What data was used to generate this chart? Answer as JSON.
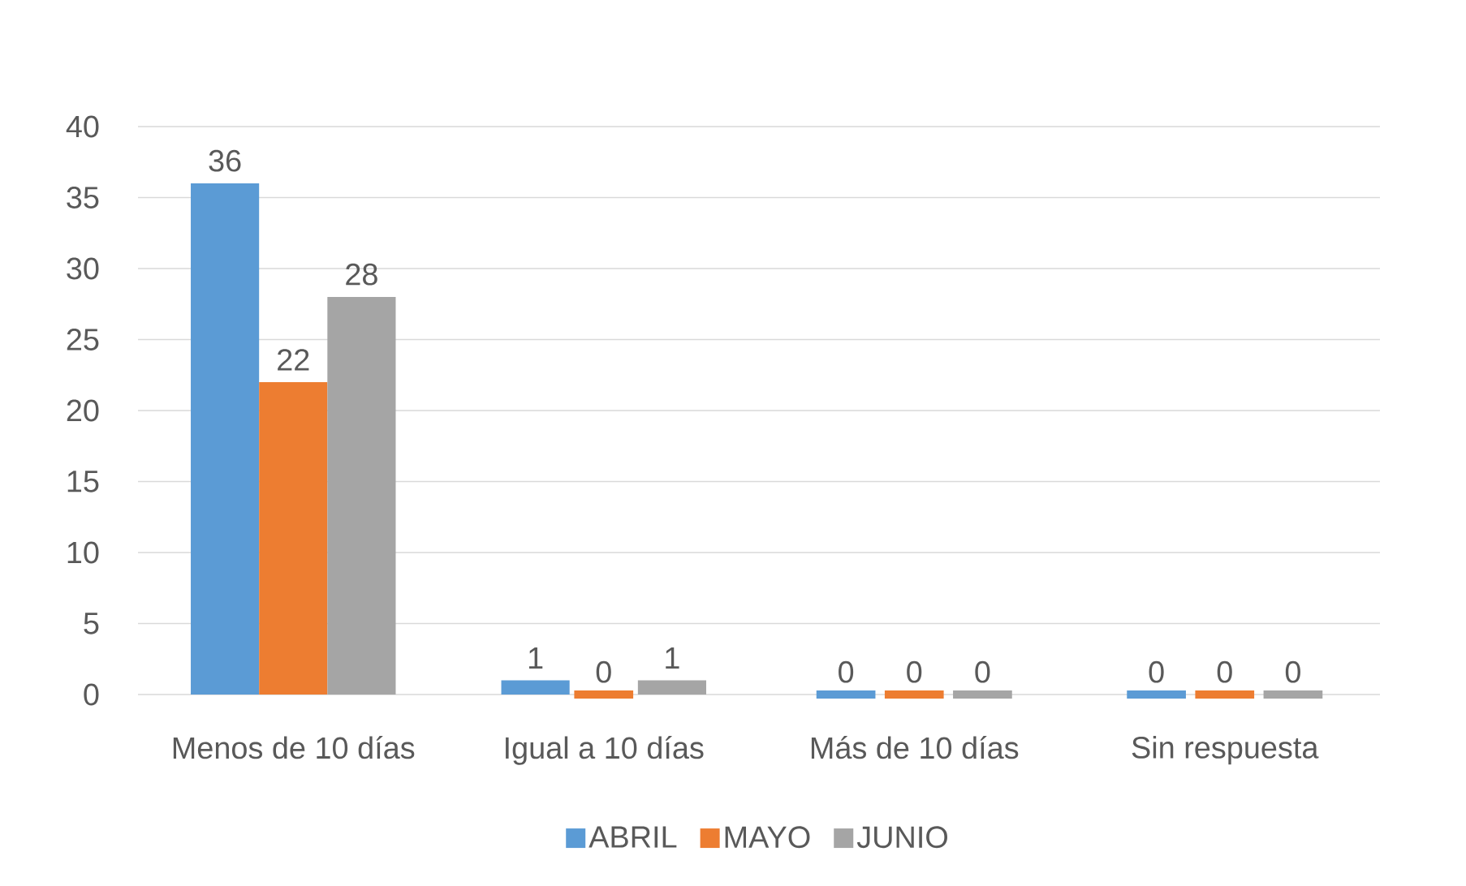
{
  "chart_data": {
    "type": "bar",
    "categories": [
      "Menos de 10 días",
      "Igual a 10 días",
      "Más de 10 días",
      "Sin respuesta"
    ],
    "series": [
      {
        "name": "ABRIL",
        "color": "#5b9bd5",
        "values": [
          36,
          1,
          0,
          0
        ]
      },
      {
        "name": "MAYO",
        "color": "#ed7d31",
        "values": [
          22,
          0,
          0,
          0
        ]
      },
      {
        "name": "JUNIO",
        "color": "#a5a5a5",
        "values": [
          28,
          1,
          0,
          0
        ]
      }
    ],
    "ylim": [
      0,
      40
    ],
    "yticks": [
      0,
      5,
      10,
      15,
      20,
      25,
      30,
      35,
      40
    ],
    "grid": "y",
    "legend": "bottom",
    "data_labels": true
  }
}
